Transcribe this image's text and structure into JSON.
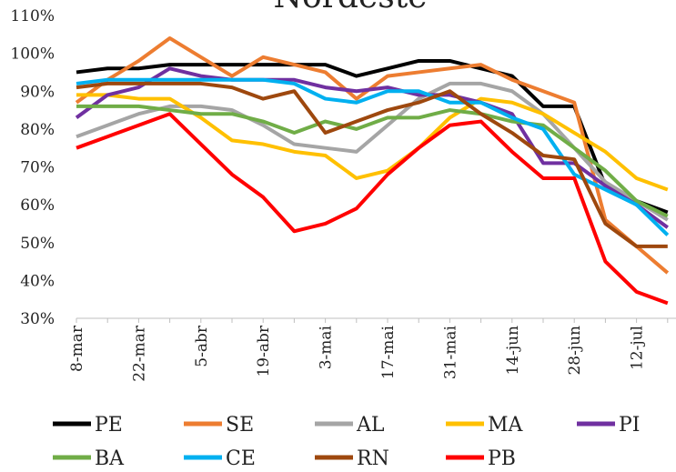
{
  "chart_data": {
    "type": "line",
    "title": "Nordeste",
    "categories": [
      "8-mar",
      null,
      "22-mar",
      null,
      "5-abr",
      null,
      "19-abr",
      null,
      "3-mai",
      null,
      "17-mai",
      null,
      "31-mai",
      null,
      "14-jun",
      null,
      "28-jun",
      null,
      "12-jul",
      null
    ],
    "series": [
      {
        "name": "PE",
        "color": "#000000",
        "values": [
          95,
          96,
          96,
          97,
          97,
          97,
          97,
          97,
          97,
          94,
          96,
          98,
          98,
          96,
          94,
          86,
          86,
          65,
          61,
          58
        ]
      },
      {
        "name": "SE",
        "color": "#ed7d31",
        "values": [
          87,
          93,
          98,
          104,
          99,
          94,
          99,
          97,
          95,
          88,
          94,
          95,
          96,
          97,
          93,
          90,
          87,
          56,
          49,
          42
        ]
      },
      {
        "name": "AL",
        "color": "#a5a5a5",
        "values": [
          78,
          81,
          84,
          86,
          86,
          85,
          81,
          76,
          75,
          74,
          81,
          88,
          92,
          92,
          90,
          84,
          75,
          66,
          61,
          56
        ]
      },
      {
        "name": "MA",
        "color": "#ffc000",
        "values": [
          89,
          89,
          88,
          88,
          83,
          77,
          76,
          74,
          73,
          67,
          69,
          75,
          83,
          88,
          87,
          84,
          79,
          74,
          67,
          64
        ]
      },
      {
        "name": "PI",
        "color": "#7030a0",
        "values": [
          83,
          89,
          91,
          96,
          94,
          93,
          93,
          93,
          91,
          90,
          91,
          89,
          89,
          87,
          84,
          71,
          71,
          65,
          60,
          54
        ]
      },
      {
        "name": "BA",
        "color": "#70ad47",
        "values": [
          86,
          86,
          86,
          85,
          84,
          84,
          82,
          79,
          82,
          80,
          83,
          83,
          85,
          84,
          82,
          81,
          75,
          69,
          61,
          57
        ]
      },
      {
        "name": "CE",
        "color": "#00b0f0",
        "values": [
          92,
          93,
          93,
          93,
          93,
          93,
          93,
          92,
          88,
          87,
          90,
          90,
          87,
          87,
          83,
          80,
          68,
          64,
          60,
          52
        ]
      },
      {
        "name": "RN",
        "color": "#9e480e",
        "values": [
          91,
          92,
          92,
          92,
          92,
          91,
          88,
          90,
          79,
          82,
          85,
          87,
          90,
          84,
          79,
          73,
          72,
          55,
          49,
          49
        ]
      },
      {
        "name": "PB",
        "color": "#ff0000",
        "values": [
          75,
          78,
          81,
          84,
          76,
          68,
          62,
          53,
          55,
          59,
          68,
          75,
          81,
          82,
          74,
          67,
          67,
          45,
          37,
          34
        ]
      }
    ],
    "ylim": [
      30,
      110
    ],
    "yticks": [
      {
        "value": 30,
        "label": "30%"
      },
      {
        "value": 40,
        "label": "40%"
      },
      {
        "value": 50,
        "label": "50%"
      },
      {
        "value": 60,
        "label": "60%"
      },
      {
        "value": 70,
        "label": "70%"
      },
      {
        "value": 80,
        "label": "80%"
      },
      {
        "value": 90,
        "label": "90%"
      },
      {
        "value": 100,
        "label": "100%"
      },
      {
        "value": 110,
        "label": "110%"
      }
    ]
  }
}
